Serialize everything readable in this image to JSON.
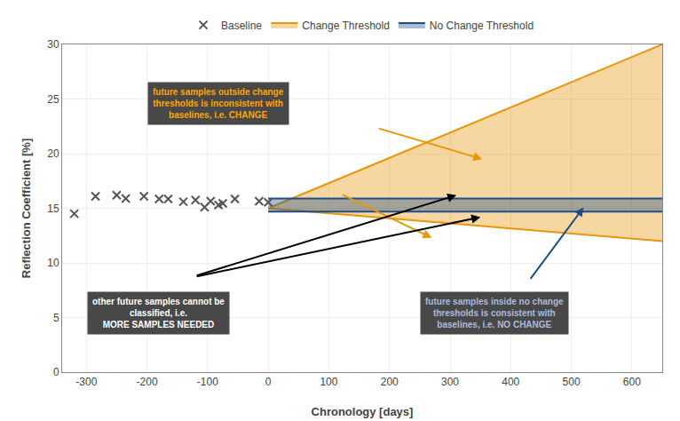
{
  "chart_data": {
    "type": "scatter",
    "xlabel": "Chronology [days]",
    "ylabel": "Reflection Coefficient [%]",
    "xlim": [
      -340,
      650
    ],
    "ylim": [
      0,
      30
    ],
    "xticks": [
      -300,
      -200,
      -100,
      0,
      100,
      200,
      300,
      400,
      500,
      600
    ],
    "yticks": [
      0,
      5,
      10,
      15,
      20,
      25,
      30
    ],
    "grid": true,
    "legend": "top",
    "series": [
      {
        "name": "Baseline",
        "type": "scatter",
        "marker": "x",
        "color": "#555555",
        "x": [
          -320,
          -285,
          -250,
          -235,
          -205,
          -180,
          -165,
          -140,
          -120,
          -95,
          -75,
          -55,
          -105,
          -82,
          0,
          -15
        ],
        "values": [
          14.5,
          16.1,
          16.2,
          15.9,
          16.1,
          15.85,
          15.85,
          15.6,
          15.75,
          15.65,
          15.45,
          15.85,
          15.1,
          15.3,
          15.55,
          15.65
        ]
      },
      {
        "name": "Change Threshold",
        "type": "band",
        "color": "#E8960A",
        "x": [
          0,
          650
        ],
        "upper": [
          15.0,
          30.0
        ],
        "lower": [
          15.0,
          12.0
        ]
      },
      {
        "name": "No Change Threshold",
        "type": "band",
        "color": "#1E4D8C",
        "x": [
          0,
          650
        ],
        "upper": [
          15.9,
          15.9
        ],
        "lower": [
          14.7,
          14.7
        ]
      }
    ],
    "annotations": [
      {
        "text": "future samples outside change\nthresholds is inconsistent with\nbaselines, i.e. CHANGE",
        "color": "#FFA500"
      },
      {
        "text": "other future samples cannot be\nclassified, i.e.\nMORE SAMPLES NEEDED",
        "color": "#ffffff"
      },
      {
        "text": "future samples inside no change\nthresholds is consistent with\nbaselines, i.e. NO CHANGE",
        "color": "#aabbdd"
      }
    ]
  }
}
